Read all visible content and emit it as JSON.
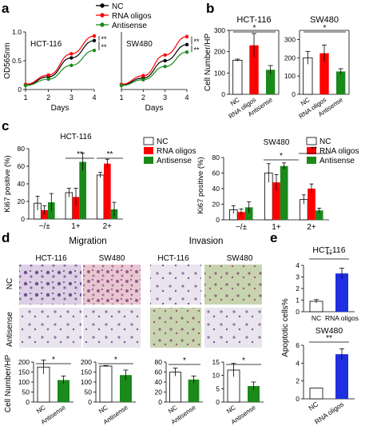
{
  "panels": {
    "a": "a",
    "b": "b",
    "c": "c",
    "d": "d",
    "e": "e"
  },
  "colors": {
    "nc": "#000000",
    "rna": "#ff0000",
    "antisense": "#1a8a1a",
    "blue": "#1f2ee0",
    "white": "#ffffff"
  },
  "legend_a": {
    "nc": "NC",
    "rna": "RNA oligos",
    "antisense": "Antisense"
  },
  "legend_c": {
    "nc": "NC",
    "rna": "RNA oligos",
    "antisense": "Antisense"
  },
  "d_labels": {
    "migration": "Migration",
    "invasion": "Invasion",
    "hct": "HCT-116",
    "sw": "SW480",
    "row_nc": "NC",
    "row_antisense": "Antisense",
    "ylabel": "Cell Number/HP"
  },
  "chart_data": [
    {
      "id": "a_hct",
      "type": "line",
      "title": "HCT-116",
      "xlabel": "Days",
      "ylabel": "OD565nm",
      "x": [
        1,
        2,
        3,
        4
      ],
      "xlim": [
        1,
        4
      ],
      "ylim": [
        0,
        1.0
      ],
      "yticks": [
        0,
        0.5,
        1.0
      ],
      "series": [
        {
          "name": "NC",
          "values": [
            0.08,
            0.22,
            0.55,
            0.85
          ]
        },
        {
          "name": "RNA oligos",
          "values": [
            0.09,
            0.25,
            0.62,
            0.93
          ]
        },
        {
          "name": "Antisense",
          "values": [
            0.07,
            0.18,
            0.42,
            0.68
          ]
        }
      ],
      "annotations": [
        "**",
        "**"
      ]
    },
    {
      "id": "a_sw",
      "type": "line",
      "title": "SW480",
      "xlabel": "Days",
      "x": [
        1,
        2,
        3,
        4
      ],
      "xlim": [
        1,
        4
      ],
      "ylim": [
        0,
        1.0
      ],
      "series": [
        {
          "name": "NC",
          "values": [
            0.08,
            0.2,
            0.5,
            0.78
          ]
        },
        {
          "name": "RNA oligos",
          "values": [
            0.09,
            0.24,
            0.6,
            0.92
          ]
        },
        {
          "name": "Antisense",
          "values": [
            0.07,
            0.17,
            0.4,
            0.65
          ]
        }
      ],
      "annotations": [
        "**",
        "**"
      ]
    },
    {
      "id": "b_hct",
      "type": "bar",
      "title": "HCT-116",
      "ylabel": "Cell Number/HP",
      "categories": [
        "NC",
        "RNA oligos",
        "Antisense"
      ],
      "values": [
        160,
        230,
        115
      ],
      "errors": [
        5,
        55,
        20
      ],
      "ylim": [
        0,
        300
      ],
      "yticks": [
        0,
        100,
        200,
        300
      ],
      "annotations": [
        "*"
      ]
    },
    {
      "id": "b_sw",
      "type": "bar",
      "title": "SW480",
      "categories": [
        "NC",
        "RNA oligos",
        "Antisense"
      ],
      "values": [
        200,
        225,
        125
      ],
      "errors": [
        35,
        45,
        15
      ],
      "ylim": [
        0,
        350
      ],
      "yticks": [
        0,
        100,
        200,
        300
      ],
      "annotations": [
        "*"
      ]
    },
    {
      "id": "c_hct",
      "type": "bar",
      "title": "HCT-116",
      "ylabel": "Ki67 positive (%)",
      "categories": [
        "−/±",
        "1+",
        "2+"
      ],
      "series": [
        {
          "name": "NC",
          "values": [
            18,
            30,
            50
          ],
          "errors": [
            8,
            5,
            3
          ]
        },
        {
          "name": "RNA oligos",
          "values": [
            10,
            25,
            63
          ],
          "errors": [
            5,
            10,
            5
          ]
        },
        {
          "name": "Antisense",
          "values": [
            19,
            65,
            11
          ],
          "errors": [
            10,
            10,
            8
          ]
        }
      ],
      "ylim": [
        0,
        80
      ],
      "yticks": [
        0,
        20,
        40,
        60,
        80
      ],
      "annotations": [
        "**",
        "**"
      ]
    },
    {
      "id": "c_sw",
      "type": "bar",
      "title": "SW480",
      "ylabel": "Ki67 positive (%)",
      "categories": [
        "−/±",
        "1+",
        "2+"
      ],
      "series": [
        {
          "name": "NC",
          "values": [
            13,
            60,
            26
          ],
          "errors": [
            5,
            12,
            6
          ]
        },
        {
          "name": "RNA oligos",
          "values": [
            10,
            48,
            40
          ],
          "errors": [
            4,
            10,
            6
          ]
        },
        {
          "name": "Antisense",
          "values": [
            16,
            69,
            12
          ],
          "errors": [
            7,
            4,
            3
          ]
        }
      ],
      "ylim": [
        0,
        80
      ],
      "yticks": [
        0,
        20,
        40,
        60,
        80
      ],
      "annotations": [
        "*",
        "**"
      ]
    },
    {
      "id": "d_mig_hct",
      "type": "bar",
      "categories": [
        "NC",
        "Antisense"
      ],
      "values": [
        175,
        110
      ],
      "errors": [
        35,
        20
      ],
      "ylim": [
        0,
        200
      ],
      "yticks": [
        0,
        50,
        100,
        150,
        200
      ],
      "annotations": [
        "*"
      ]
    },
    {
      "id": "d_mig_sw",
      "type": "bar",
      "categories": [
        "NC",
        "Antisense"
      ],
      "values": [
        180,
        135
      ],
      "errors": [
        3,
        25
      ],
      "ylim": [
        0,
        200
      ],
      "yticks": [
        0,
        50,
        100,
        150,
        200
      ],
      "annotations": [
        "*"
      ]
    },
    {
      "id": "d_inv_hct",
      "type": "bar",
      "categories": [
        "NC",
        "Antisense"
      ],
      "values": [
        60,
        45
      ],
      "errors": [
        8,
        7
      ],
      "ylim": [
        0,
        80
      ],
      "yticks": [
        0,
        20,
        40,
        60,
        80
      ],
      "annotations": [
        "*"
      ]
    },
    {
      "id": "d_inv_sw",
      "type": "bar",
      "categories": [
        "NC",
        "Antisense"
      ],
      "values": [
        12,
        6
      ],
      "errors": [
        2.5,
        1.5
      ],
      "ylim": [
        0,
        15
      ],
      "yticks": [
        0,
        5,
        10,
        15
      ],
      "annotations": [
        "*"
      ]
    },
    {
      "id": "e_hct",
      "type": "bar",
      "title": "HCT-116",
      "categories": [
        "NC",
        "RNA oligos"
      ],
      "values": [
        0.9,
        3.3
      ],
      "errors": [
        0.15,
        0.45
      ],
      "ylim": [
        0,
        4
      ],
      "yticks": [
        0,
        1,
        2,
        3,
        4
      ],
      "annotations": [
        "**"
      ]
    },
    {
      "id": "e_sw",
      "type": "bar",
      "title": "SW480",
      "ylabel": "Apoptotic cells%",
      "categories": [
        "NC",
        "RNA oligos"
      ],
      "values": [
        1.2,
        5.0
      ],
      "errors": [
        0,
        0.6
      ],
      "ylim": [
        0,
        6
      ],
      "yticks": [
        0,
        2,
        4,
        6
      ],
      "annotations": [
        "**"
      ]
    }
  ]
}
